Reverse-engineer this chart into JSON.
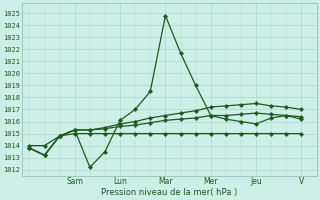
{
  "background_color": "#ceeee8",
  "grid_color": "#a8d8cc",
  "line_color": "#1a5c1a",
  "ylim": [
    1011.5,
    1025.8
  ],
  "yticks": [
    1012,
    1013,
    1014,
    1015,
    1016,
    1017,
    1018,
    1019,
    1020,
    1021,
    1022,
    1023,
    1024,
    1025
  ],
  "xlabel": "Pression niveau de la mer( hPa )",
  "day_labels": [
    "Sam",
    "Lun",
    "Mar",
    "Mer",
    "Jeu",
    "V"
  ],
  "day_positions": [
    3,
    6,
    9,
    12,
    15,
    18
  ],
  "line1_x": [
    0,
    1,
    2,
    3,
    4,
    5,
    6,
    7,
    8,
    9,
    10,
    11,
    12,
    13,
    14,
    15,
    16,
    17,
    18
  ],
  "line1_y": [
    1013.8,
    1013.2,
    1014.8,
    1015.3,
    1012.2,
    1013.5,
    1016.1,
    1017.0,
    1018.5,
    1024.8,
    1021.7,
    1019.0,
    1016.5,
    1016.2,
    1016.0,
    1015.8,
    1016.3,
    1016.5,
    1016.2
  ],
  "line2_x": [
    0,
    1,
    2,
    3,
    4,
    5,
    6,
    7,
    8,
    9,
    10,
    11,
    12,
    13,
    14,
    15,
    16,
    17,
    18
  ],
  "line2_y": [
    1013.8,
    1013.2,
    1014.8,
    1015.3,
    1015.3,
    1015.5,
    1015.8,
    1016.0,
    1016.3,
    1016.5,
    1016.7,
    1016.9,
    1017.2,
    1017.3,
    1017.4,
    1017.5,
    1017.3,
    1017.2,
    1017.0
  ],
  "line3_x": [
    0,
    1,
    2,
    3,
    4,
    5,
    6,
    7,
    8,
    9,
    10,
    11,
    12,
    13,
    14,
    15,
    16,
    17,
    18
  ],
  "line3_y": [
    1013.8,
    1013.2,
    1014.8,
    1015.3,
    1015.3,
    1015.4,
    1015.6,
    1015.7,
    1015.9,
    1016.1,
    1016.2,
    1016.3,
    1016.5,
    1016.5,
    1016.6,
    1016.7,
    1016.6,
    1016.5,
    1016.4
  ],
  "line4_x": [
    0,
    1,
    2,
    3,
    4,
    5,
    6,
    7,
    8,
    9,
    10,
    11,
    12,
    13,
    14,
    15,
    16,
    17,
    18
  ],
  "line4_y": [
    1014.0,
    1014.0,
    1014.8,
    1015.0,
    1015.0,
    1015.0,
    1015.0,
    1015.0,
    1015.0,
    1015.0,
    1015.0,
    1015.0,
    1015.0,
    1015.0,
    1015.0,
    1015.0,
    1015.0,
    1015.0,
    1015.0
  ]
}
